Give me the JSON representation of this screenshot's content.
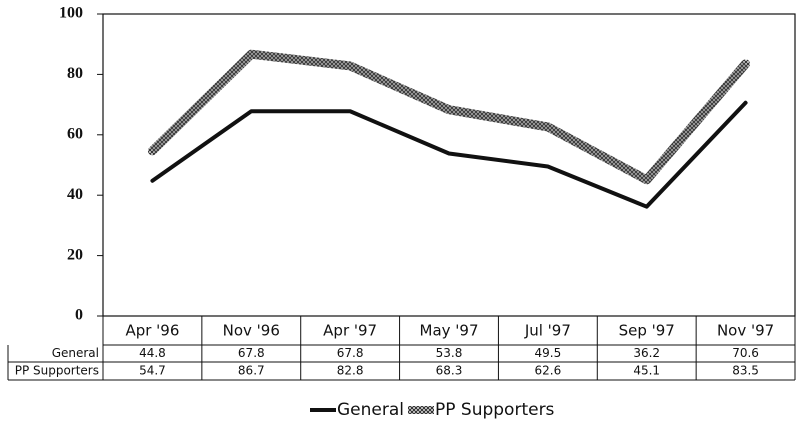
{
  "chart_data": {
    "type": "line",
    "categories": [
      "Apr '96",
      "Nov '96",
      "Apr '97",
      "May '97",
      "Jul '97",
      "Sep '97",
      "Nov '97"
    ],
    "series": [
      {
        "name": "General",
        "color": "#111111",
        "values": [
          44.8,
          67.8,
          67.8,
          53.8,
          49.5,
          36.2,
          70.6
        ]
      },
      {
        "name": "PP Supporters",
        "color": "#555555",
        "values": [
          54.7,
          86.7,
          82.8,
          68.3,
          62.6,
          45.1,
          83.5
        ]
      }
    ],
    "ylim": [
      0,
      100
    ],
    "yticks": [
      0,
      20,
      40,
      60,
      80,
      100
    ],
    "grid": false
  }
}
